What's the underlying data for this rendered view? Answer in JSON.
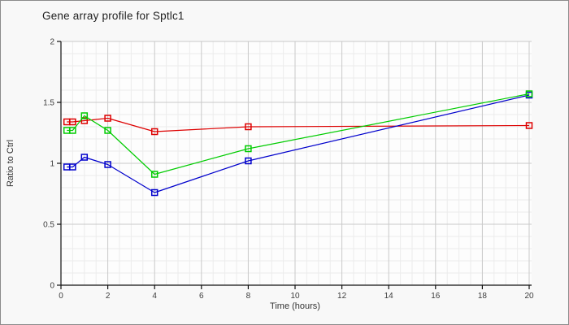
{
  "window": {
    "title": "Gene array profile for Sptlc1"
  },
  "colors": {
    "background": "#f8f8f8",
    "plot_bg": "#fdfdfd",
    "grid_minor": "#ececec",
    "grid_major": "#c9c9c9",
    "axis": "#111111",
    "tick_text": "#3d3d3d",
    "axis_label_text": "#333333",
    "border": "#8c8c8c"
  },
  "chart_data": {
    "type": "line",
    "title": "Gene array profile for Sptlc1",
    "xlabel": "Time (hours)",
    "ylabel": "Ratio to Ctrl",
    "xlim": [
      0,
      20
    ],
    "ylim": [
      0,
      2
    ],
    "x_major_ticks": [
      0,
      2,
      4,
      6,
      8,
      10,
      12,
      14,
      16,
      18,
      20
    ],
    "y_major_ticks": [
      0,
      0.5,
      1,
      1.5,
      2
    ],
    "x_minor_step": 0.5,
    "y_minor_step": 0.1,
    "grid": true,
    "legend_position": "none",
    "marker": "open-square",
    "x": [
      0.25,
      0.5,
      1,
      2,
      4,
      8,
      20
    ],
    "series": [
      {
        "name": "series-red",
        "color": "#dd0000",
        "values": [
          1.34,
          1.34,
          1.35,
          1.37,
          1.26,
          1.3,
          1.31
        ]
      },
      {
        "name": "series-blue",
        "color": "#0000cc",
        "values": [
          0.97,
          0.97,
          1.05,
          0.99,
          0.76,
          1.02,
          1.56
        ]
      },
      {
        "name": "series-green",
        "color": "#00cc00",
        "values": [
          1.27,
          1.27,
          1.39,
          1.27,
          0.91,
          1.12,
          1.57
        ]
      }
    ]
  }
}
